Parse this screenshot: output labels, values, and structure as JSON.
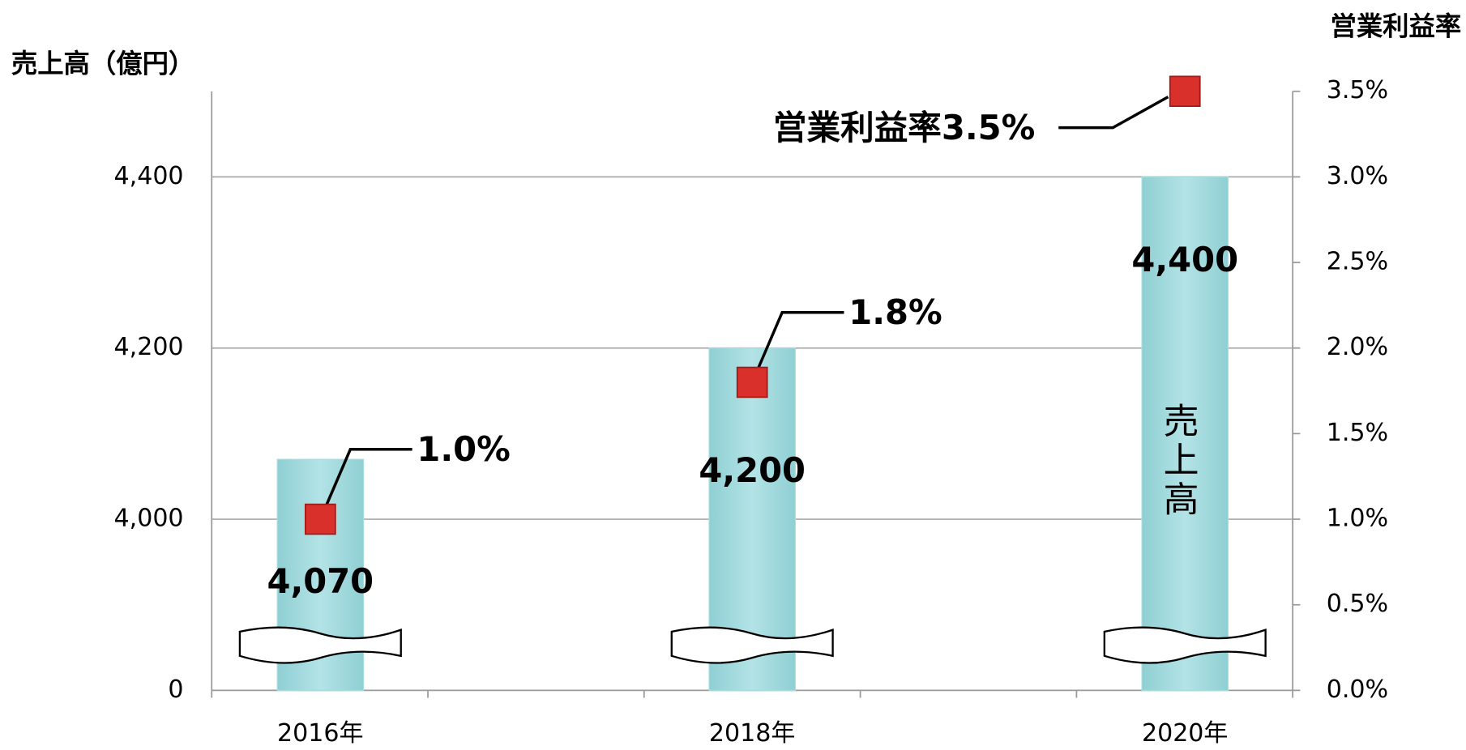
{
  "chart_data": {
    "type": "bar_line",
    "ylabel": "売上高（億円）",
    "y2label": "営業利益率",
    "categories": [
      "2016年",
      "2018年",
      "2020年"
    ],
    "series": [
      {
        "name": "売上高",
        "type": "bar",
        "color": "#a8dde0",
        "values": [
          4070,
          4200,
          4400
        ],
        "value_labels": [
          "4,070",
          "4,200",
          "4,400"
        ]
      },
      {
        "type": "line",
        "axis": "y2",
        "color": "#d9302c",
        "values": [
          1.0,
          1.8,
          3.5
        ],
        "value_labels": [
          "1.0%",
          "1.8%",
          "営業利益率3.5%"
        ]
      }
    ],
    "ylim": [
      0,
      4500
    ],
    "yticks": [
      0,
      {
        "value": 4000,
        "label": "4,000"
      },
      {
        "value": 4200,
        "label": "4,200"
      },
      {
        "value": 4400,
        "label": "4,400"
      }
    ],
    "y_axis_break": true,
    "y2lim": [
      0,
      3.5
    ],
    "y2ticks": [
      {
        "value": 0,
        "label": "0.0%"
      },
      {
        "value": 0.5,
        "label": "0.5%"
      },
      {
        "value": 1.0,
        "label": "1.0%"
      },
      {
        "value": 1.5,
        "label": "1.5%"
      },
      {
        "value": 2.0,
        "label": "2.0%"
      },
      {
        "value": 2.5,
        "label": "2.5%"
      },
      {
        "value": 3.0,
        "label": "3.0%"
      },
      {
        "value": 3.5,
        "label": "3.5%"
      }
    ],
    "grid": true
  }
}
